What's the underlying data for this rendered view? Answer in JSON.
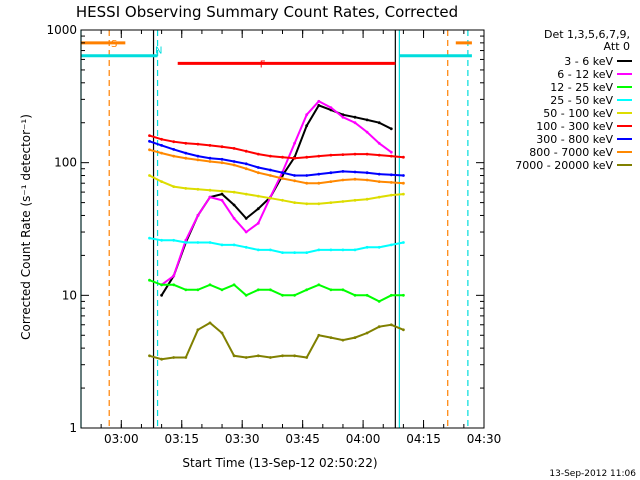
{
  "chart_data": {
    "type": "line",
    "title": "HESSI Observing Summary Count Rates, Corrected",
    "xlabel": "Start Time (13-Sep-12 02:50:22)",
    "ylabel": "Corrected Count Rate (s⁻¹ detector⁻¹)",
    "yscale": "log",
    "ylim": [
      1,
      1000
    ],
    "xlim": [
      "02:50",
      "04:30"
    ],
    "x_ticks": [
      "03:00",
      "03:15",
      "03:30",
      "03:45",
      "04:00",
      "04:15",
      "04:30"
    ],
    "y_ticks": [
      "1",
      "10",
      "100",
      "1000"
    ],
    "grid": false,
    "legend_position": "top-right",
    "detectors": "Det 1,3,5,6,7,9,",
    "attenuator": "Att 0",
    "date_stamp": "13-Sep-2012 11:06",
    "x": [
      "03:07",
      "03:10",
      "03:13",
      "03:16",
      "03:19",
      "03:22",
      "03:25",
      "03:28",
      "03:31",
      "03:34",
      "03:37",
      "03:40",
      "03:43",
      "03:46",
      "03:49",
      "03:52",
      "03:55",
      "03:58",
      "04:01",
      "04:04",
      "04:07",
      "04:10"
    ],
    "series": [
      {
        "name": "3 - 6 keV",
        "color": "#000000",
        "values": [
          null,
          10,
          14,
          25,
          40,
          55,
          58,
          48,
          38,
          45,
          55,
          80,
          110,
          190,
          270,
          250,
          230,
          220,
          210,
          200,
          180,
          null
        ]
      },
      {
        "name": "6 - 12 keV",
        "color": "#ff00ff",
        "values": [
          null,
          12,
          14,
          26,
          40,
          55,
          52,
          38,
          30,
          35,
          55,
          85,
          140,
          230,
          290,
          260,
          220,
          200,
          170,
          140,
          120,
          null
        ]
      },
      {
        "name": "12 - 25 keV",
        "color": "#00ff00",
        "values": [
          13,
          12,
          12,
          11,
          11,
          12,
          11,
          12,
          10,
          11,
          11,
          10,
          10,
          11,
          12,
          11,
          11,
          10,
          10,
          9,
          10,
          10
        ]
      },
      {
        "name": "25 - 50 keV",
        "color": "#00ffff",
        "values": [
          27,
          26,
          26,
          25,
          25,
          25,
          24,
          24,
          23,
          22,
          22,
          21,
          21,
          21,
          22,
          22,
          22,
          22,
          23,
          23,
          24,
          25
        ]
      },
      {
        "name": "50 - 100 keV",
        "color": "#dddd00",
        "values": [
          80,
          72,
          66,
          64,
          63,
          62,
          61,
          60,
          58,
          56,
          54,
          52,
          50,
          49,
          49,
          50,
          51,
          52,
          53,
          55,
          57,
          58
        ]
      },
      {
        "name": "100 - 300 keV",
        "color": "#ff0000",
        "values": [
          160,
          150,
          144,
          140,
          138,
          135,
          132,
          128,
          122,
          116,
          112,
          110,
          108,
          110,
          112,
          114,
          115,
          116,
          116,
          114,
          112,
          110
        ]
      },
      {
        "name": "300 - 800 keV",
        "color": "#0000ff",
        "values": [
          145,
          135,
          126,
          118,
          112,
          108,
          106,
          102,
          98,
          92,
          88,
          84,
          80,
          80,
          82,
          84,
          86,
          85,
          84,
          82,
          81,
          80
        ]
      },
      {
        "name": "800 - 7000 keV",
        "color": "#ff8800",
        "values": [
          125,
          118,
          112,
          108,
          105,
          102,
          100,
          96,
          90,
          84,
          80,
          76,
          73,
          70,
          70,
          72,
          74,
          75,
          74,
          72,
          71,
          70
        ]
      },
      {
        "name": "7000 - 20000 keV",
        "color": "#808000",
        "values": [
          3.5,
          3.3,
          3.4,
          3.4,
          5.5,
          6.2,
          5.2,
          3.5,
          3.4,
          3.5,
          3.4,
          3.5,
          3.5,
          3.4,
          5.0,
          4.8,
          4.6,
          4.8,
          5.2,
          5.8,
          6.0,
          5.5
        ]
      }
    ],
    "state_bars": [
      {
        "label": "S",
        "color": "#ff8000",
        "from": "02:50",
        "to": "03:01",
        "level": 800
      },
      {
        "label": "S",
        "color": "#ff8000",
        "from": "04:23",
        "to": "04:27",
        "level": 800
      },
      {
        "label": "N",
        "color": "#00dddd",
        "from": "02:50",
        "to": "03:09",
        "level": 640
      },
      {
        "label": "N",
        "color": "#00dddd",
        "from": "04:09",
        "to": "04:27",
        "level": 640
      },
      {
        "label": "F",
        "color": "#ff0000",
        "from": "03:14",
        "to": "04:08",
        "level": 560
      }
    ],
    "orbit_lines": [
      {
        "style": "dashed",
        "color": "#ff8000",
        "time": "02:57"
      },
      {
        "style": "dashed",
        "color": "#ff8000",
        "time": "04:21"
      },
      {
        "style": "dashed",
        "color": "#00dddd",
        "time": "03:09"
      },
      {
        "style": "dashed",
        "color": "#00dddd",
        "time": "04:26"
      },
      {
        "style": "solid",
        "color": "#00dddd",
        "time": "02:50"
      },
      {
        "style": "solid",
        "color": "#00dddd",
        "time": "04:09"
      },
      {
        "style": "solid",
        "color": "#000000",
        "time": "03:08"
      },
      {
        "style": "solid",
        "color": "#000000",
        "time": "04:08"
      }
    ]
  }
}
